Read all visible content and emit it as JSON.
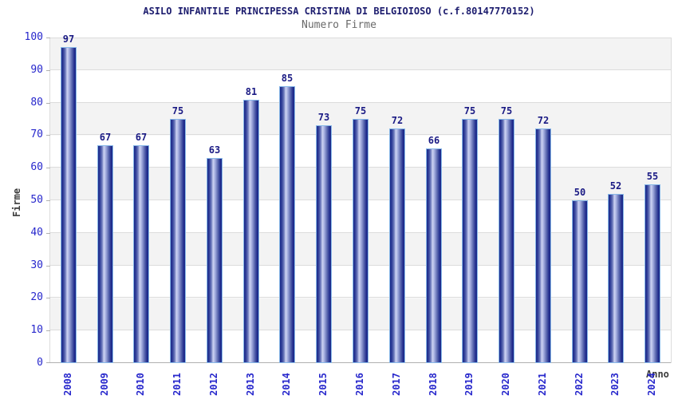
{
  "chart_data": {
    "type": "bar",
    "title": "ASILO INFANTILE PRINCIPESSA CRISTINA DI BELGIOIOSO (c.f.80147770152)",
    "subtitle": "Numero Firme",
    "xlabel": "Anno",
    "ylabel": "Firme",
    "categories": [
      "2008",
      "2009",
      "2010",
      "2011",
      "2012",
      "2013",
      "2014",
      "2015",
      "2016",
      "2017",
      "2018",
      "2019",
      "2020",
      "2021",
      "2022",
      "2023",
      "2024"
    ],
    "values": [
      97,
      67,
      67,
      75,
      63,
      81,
      85,
      73,
      75,
      72,
      66,
      75,
      75,
      72,
      50,
      52,
      55
    ],
    "yticks": [
      "0",
      "10",
      "20",
      "30",
      "40",
      "50",
      "60",
      "70",
      "80",
      "90",
      "100"
    ],
    "ylim": [
      0,
      100
    ],
    "ytick_step": 10,
    "grid": "horizontal-bands",
    "legend": "none",
    "bar_value_labels": true
  },
  "colors": {
    "title": "#1c1c6e",
    "subtitle": "#6a6a6a",
    "value_label": "#1a1a84",
    "tick_label": "#2727cc",
    "axis_title": "#3b3b3b",
    "band_gray": "#f3f3f3",
    "band_white": "#ffffff",
    "grid_line": "#dcdcdc",
    "axis_line": "#b0b0b0",
    "bar_border": "#88b8e8",
    "bar_dark": "#1b2a8a",
    "bar_light": "#cdd3f2"
  }
}
